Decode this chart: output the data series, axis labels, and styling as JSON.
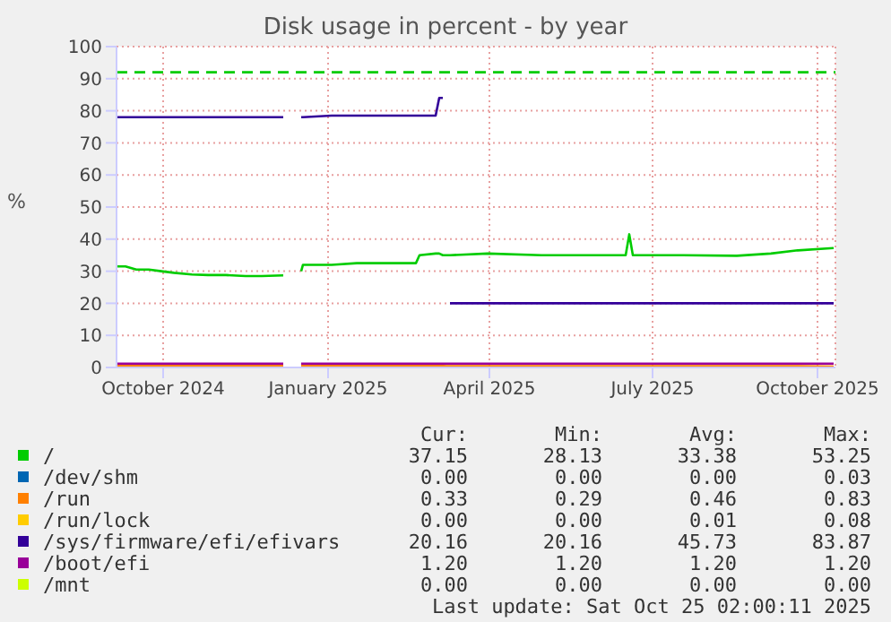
{
  "chart_data": {
    "type": "line",
    "title": "Disk usage in percent - by year",
    "ylabel": "%",
    "x": [
      "2024-09-20",
      "2024-09-25",
      "2024-10-01",
      "2024-10-08",
      "2024-10-15",
      "2024-10-22",
      "2024-11-01",
      "2024-11-10",
      "2024-11-20",
      "2024-12-01",
      "2024-12-10",
      "2024-12-22",
      "2024-12-26",
      "2025-01-01",
      "2025-01-02",
      "2025-01-18",
      "2025-02-01",
      "2025-02-15",
      "2025-03-01",
      "2025-03-06",
      "2025-03-08",
      "2025-03-17",
      "2025-03-19",
      "2025-03-21",
      "2025-03-23",
      "2025-03-25",
      "2025-04-15",
      "2025-05-15",
      "2025-06-15",
      "2025-07-01",
      "2025-07-03",
      "2025-07-05",
      "2025-08-01",
      "2025-09-01",
      "2025-09-20",
      "2025-10-05",
      "2025-10-25"
    ],
    "series": [
      {
        "name": "/",
        "color": "#00cc00",
        "values": [
          31.5,
          31.5,
          30.5,
          30.5,
          30,
          29.5,
          29,
          28.8,
          28.8,
          28.5,
          28.5,
          28.7,
          null,
          30,
          32,
          32,
          32.5,
          32.5,
          32.5,
          32.5,
          35,
          35.5,
          35.5,
          35,
          35,
          35,
          35.5,
          35,
          35,
          35,
          41.5,
          35,
          35,
          34.8,
          35.5,
          36.5,
          37.2
        ]
      },
      {
        "name": "/dev/shm",
        "color": "#0066b3",
        "values": [
          null,
          null,
          null,
          null,
          null,
          null,
          null,
          null,
          null,
          null,
          null,
          null,
          null,
          null,
          null,
          null,
          null,
          null,
          null,
          null,
          null,
          null,
          null,
          null,
          null,
          null,
          null,
          null,
          null,
          null,
          null,
          null,
          null,
          null,
          null,
          null,
          null
        ]
      },
      {
        "name": "/run",
        "color": "#ff8000",
        "values": [
          0.5,
          0.5,
          0.5,
          0.5,
          0.5,
          0.5,
          0.5,
          0.5,
          0.5,
          0.5,
          0.5,
          0.5,
          null,
          0.5,
          0.5,
          0.5,
          0.5,
          0.5,
          0.5,
          0.5,
          0.5,
          0.5,
          0.5,
          0.5,
          0.4,
          0.4,
          0.4,
          0.4,
          0.4,
          0.4,
          0.4,
          0.4,
          0.4,
          0.4,
          0.4,
          0.4,
          0.3
        ]
      },
      {
        "name": "/run/lock",
        "color": "#ffcc00",
        "values": [
          null,
          null,
          null,
          null,
          null,
          null,
          null,
          null,
          null,
          null,
          null,
          null,
          null,
          null,
          null,
          null,
          null,
          null,
          null,
          null,
          null,
          null,
          null,
          null,
          null,
          null,
          null,
          null,
          null,
          null,
          null,
          null,
          null,
          null,
          null,
          null,
          null
        ]
      },
      {
        "name": "/sys/firmware/efi/efivars",
        "color": "#330099",
        "values": [
          78,
          78,
          78,
          78,
          78,
          78,
          78,
          78,
          78,
          78,
          78,
          78,
          null,
          78,
          78,
          78.5,
          78.5,
          78.5,
          78.5,
          78.5,
          78.5,
          78.5,
          84,
          84,
          null,
          20,
          20,
          20,
          20,
          20,
          20,
          20,
          20,
          20,
          20,
          20,
          20
        ]
      },
      {
        "name": "/boot/efi",
        "color": "#990099",
        "values": [
          1.2,
          1.2,
          1.2,
          1.2,
          1.2,
          1.2,
          1.2,
          1.2,
          1.2,
          1.2,
          1.2,
          1.2,
          null,
          1.2,
          1.2,
          1.2,
          1.2,
          1.2,
          1.2,
          1.2,
          1.2,
          1.2,
          1.2,
          1.2,
          1.2,
          1.2,
          1.2,
          1.2,
          1.2,
          1.2,
          1.2,
          1.2,
          1.2,
          1.2,
          1.2,
          1.2,
          1.2
        ]
      },
      {
        "name": "/mnt",
        "color": "#ccff00",
        "values": [
          null,
          null,
          null,
          null,
          null,
          null,
          null,
          null,
          null,
          null,
          null,
          null,
          null,
          null,
          null,
          null,
          null,
          null,
          null,
          null,
          null,
          null,
          null,
          null,
          null,
          null,
          null,
          null,
          null,
          null,
          null,
          null,
          null,
          null,
          null,
          null,
          null
        ]
      }
    ],
    "xlim": [
      "2024-09-20",
      "2025-10-26"
    ],
    "xticks": [
      {
        "value": "2024-10-16",
        "label": "October 2024"
      },
      {
        "value": "2025-01-16",
        "label": "January 2025"
      },
      {
        "value": "2025-04-16",
        "label": "April 2025"
      },
      {
        "value": "2025-07-16",
        "label": "July 2025"
      },
      {
        "value": "2025-10-16",
        "label": "October 2025"
      }
    ],
    "ylim": [
      0,
      100
    ],
    "yticks": [
      0,
      10,
      20,
      30,
      40,
      50,
      60,
      70,
      80,
      90,
      100
    ],
    "grid": true,
    "legend": "bottom",
    "ref_lines": [
      {
        "axis": "y",
        "value": 92,
        "color": "#00cc00",
        "line_style": "dashed"
      }
    ],
    "annotations": [
      "Cur:",
      "Min:",
      "Avg:",
      "Max:",
      "37.15",
      "28.13",
      "33.38",
      "53.25",
      "0.00",
      "0.00",
      "0.00",
      "0.03",
      "0.33",
      "0.29",
      "0.46",
      "0.83",
      "0.00",
      "0.00",
      "0.01",
      "0.08",
      "20.16",
      "20.16",
      "45.73",
      "83.87",
      "1.20",
      "1.20",
      "1.20",
      "1.20",
      "0.00",
      "0.00",
      "0.00",
      "0.00",
      "Last update: Sat Oct 25 02:00:11 2025"
    ]
  }
}
